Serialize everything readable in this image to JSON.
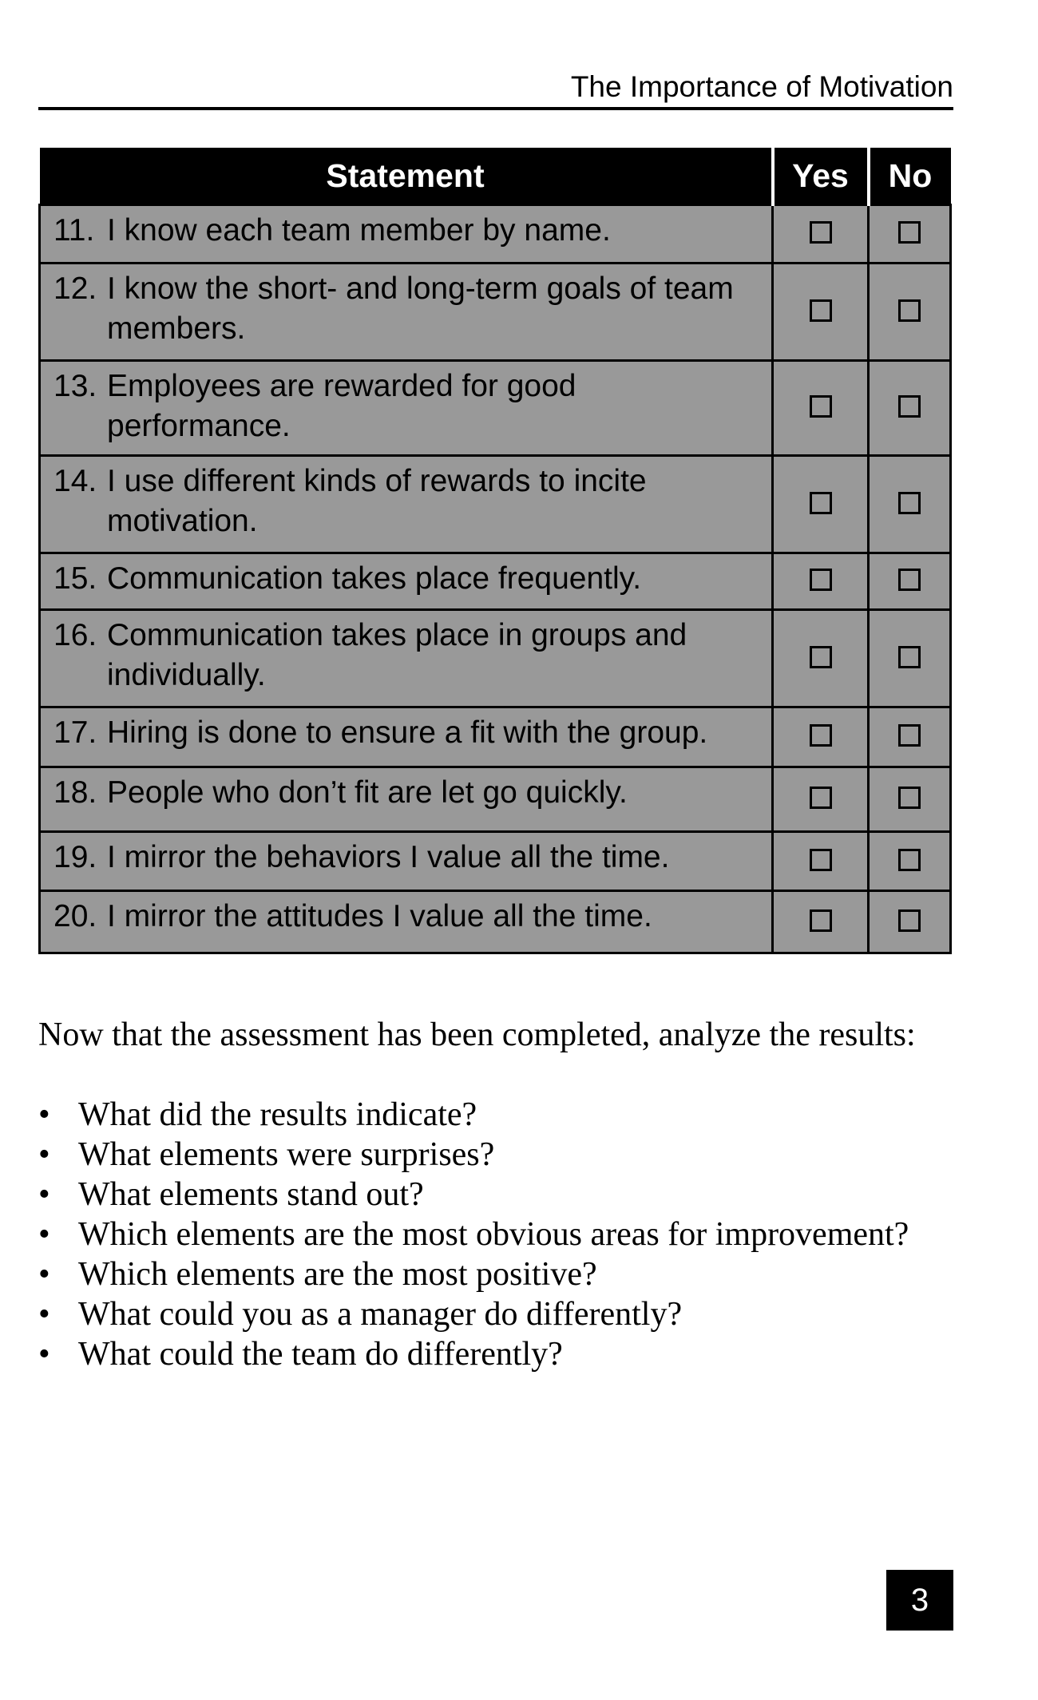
{
  "running_head": "The Importance of Motivation",
  "table": {
    "headers": {
      "statement": "Statement",
      "yes": "Yes",
      "no": "No"
    },
    "rows": [
      {
        "num": "11.",
        "text": "I know each team member by name."
      },
      {
        "num": "12.",
        "text": "I know the short- and long-term goals of team members."
      },
      {
        "num": "13.",
        "text": "Employees are rewarded for good performance."
      },
      {
        "num": "14.",
        "text": "I use different kinds of rewards to incite motivation."
      },
      {
        "num": "15.",
        "text": "Communication takes place frequently."
      },
      {
        "num": "16.",
        "text": "Communication takes place in groups and individually."
      },
      {
        "num": "17.",
        "text": "Hiring is done to ensure a fit with the group."
      },
      {
        "num": "18.",
        "text": "People who don’t fit are let go quickly."
      },
      {
        "num": "19.",
        "text": "I mirror the behaviors I value all the time."
      },
      {
        "num": "20.",
        "text": "I mirror the attitudes I value all the time."
      }
    ]
  },
  "intro": "Now that the assessment has been completed, analyze the results:",
  "bullets": [
    "What did the results indicate?",
    "What elements were surprises?",
    "What elements stand out?",
    "Which elements are the most obvious areas for improvement?",
    "Which elements are the most positive?",
    "What could you as a manager do differently?",
    "What could the team do differently?"
  ],
  "bullet_glyph": "•",
  "page_number": "3"
}
